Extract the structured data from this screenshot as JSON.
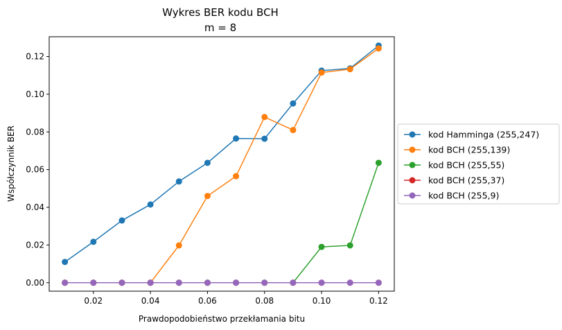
{
  "chart_data": {
    "type": "line",
    "title": "Wykres BER kodu BCH",
    "subtitle": "m = 8",
    "xlabel": "Prawdopodobieństwo przekłamania bitu",
    "ylabel": "Współczynnik BER",
    "xlim": [
      0.0045,
      0.1255
    ],
    "ylim": [
      -0.0045,
      0.1305
    ],
    "x_ticks": [
      0.02,
      0.04,
      0.06,
      0.08,
      0.1,
      0.12
    ],
    "x_tick_labels": [
      "0.02",
      "0.04",
      "0.06",
      "0.08",
      "0.10",
      "0.12"
    ],
    "y_ticks": [
      0.0,
      0.02,
      0.04,
      0.06,
      0.08,
      0.1,
      0.12
    ],
    "y_tick_labels": [
      "0.00",
      "0.02",
      "0.04",
      "0.06",
      "0.08",
      "0.10",
      "0.12"
    ],
    "grid": false,
    "legend_position": "outside-right",
    "x": [
      0.01,
      0.02,
      0.03,
      0.04,
      0.05,
      0.06,
      0.07,
      0.08,
      0.09,
      0.1,
      0.11,
      0.12
    ],
    "series": [
      {
        "name": "kod Hamminga (255,247)",
        "color": "#1f77b4",
        "values": [
          0.011,
          0.0217,
          0.033,
          0.0415,
          0.0537,
          0.0636,
          0.0765,
          0.0764,
          0.0951,
          0.1125,
          0.1137,
          0.1258
        ]
      },
      {
        "name": "kod BCH (255,139)",
        "color": "#ff7f0e",
        "values": [
          0.0,
          0.0,
          0.0,
          0.0,
          0.0198,
          0.046,
          0.0565,
          0.0879,
          0.081,
          0.1115,
          0.1133,
          0.1243
        ]
      },
      {
        "name": "kod BCH (255,55)",
        "color": "#2ca02c",
        "values": [
          0.0,
          0.0,
          0.0,
          0.0,
          0.0,
          0.0,
          0.0,
          0.0,
          0.0,
          0.019,
          0.0198,
          0.0636
        ]
      },
      {
        "name": "kod BCH (255,37)",
        "color": "#d62728",
        "values": [
          0.0,
          0.0,
          0.0,
          0.0,
          0.0,
          0.0,
          0.0,
          0.0,
          0.0,
          0.0,
          0.0,
          0.0
        ]
      },
      {
        "name": "kod BCH (255,9)",
        "color": "#9467bd",
        "values": [
          0.0,
          0.0,
          0.0,
          0.0,
          0.0,
          0.0,
          0.0,
          0.0,
          0.0,
          0.0,
          0.0,
          0.0
        ]
      }
    ]
  }
}
